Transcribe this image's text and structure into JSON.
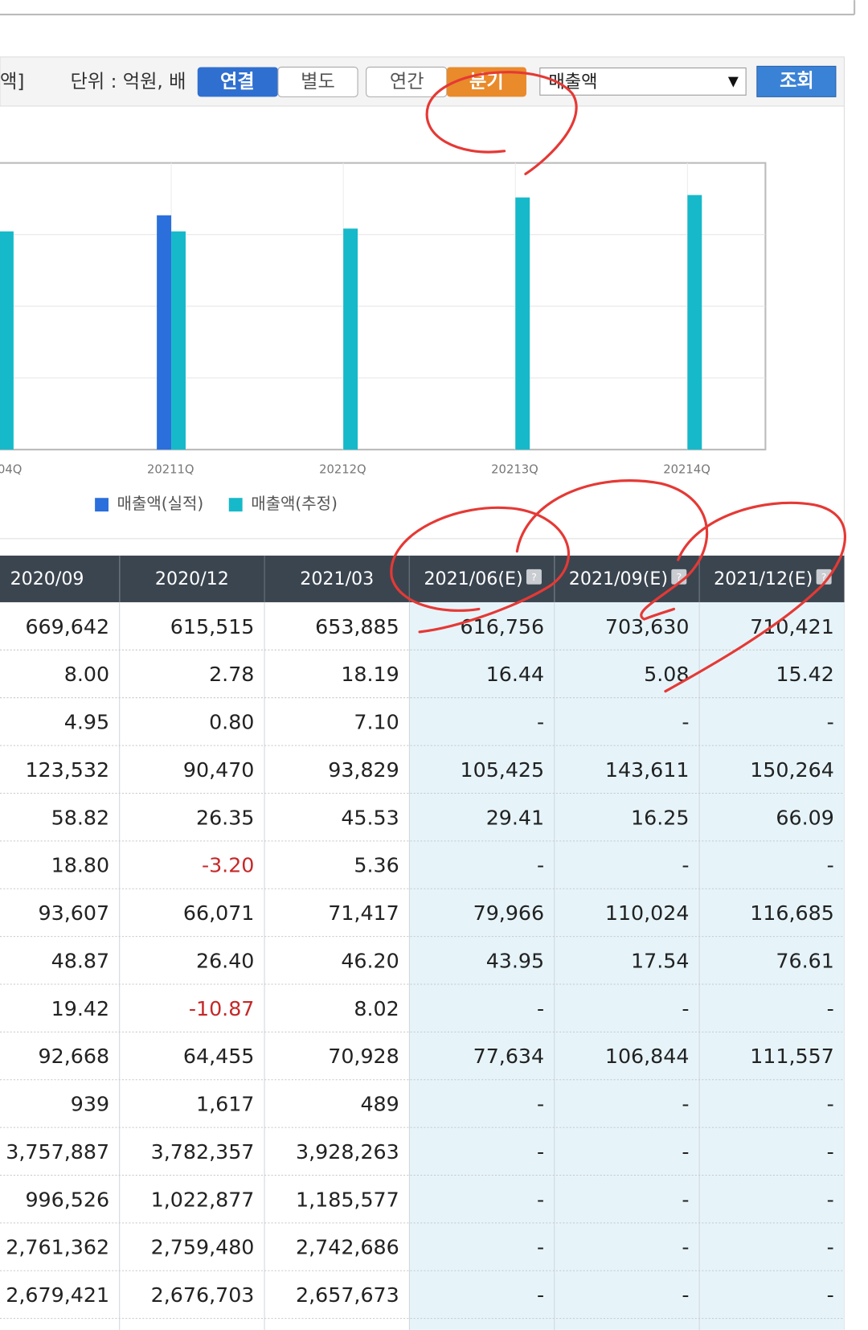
{
  "toolbar": {
    "cut_label": "액]",
    "unit": "단위 : 억원, 배",
    "buttons": [
      "연결",
      "별도",
      "연간",
      "분기"
    ],
    "select": "매출액",
    "submit": "조회"
  },
  "chart_data": {
    "type": "bar",
    "categories": [
      "04Q",
      "20211Q",
      "20212Q",
      "20213Q",
      "20214Q"
    ],
    "series": [
      {
        "name": "매출액(실적)",
        "color": "#2a6fdb",
        "values": [
          null,
          653885,
          null,
          null,
          null
        ]
      },
      {
        "name": "매출액(추정)",
        "color": "#16b9c9",
        "values": [
          609000,
          609000,
          616756,
          703630,
          710421
        ]
      }
    ],
    "ylim": [
      0,
      800000
    ],
    "yticks": [
      200000,
      400000,
      600000
    ],
    "grid": true
  },
  "table": {
    "headers": [
      "2020/09",
      "2020/12",
      "2021/03",
      "2021/06(E)",
      "2021/09(E)",
      "2021/12(E)"
    ],
    "rows": [
      [
        "669,642",
        "615,515",
        "653,885",
        "616,756",
        "703,630",
        "710,421"
      ],
      [
        "8.00",
        "2.78",
        "18.19",
        "16.44",
        "5.08",
        "15.42"
      ],
      [
        "4.95",
        "0.80",
        "7.10",
        "-",
        "-",
        "-"
      ],
      [
        "123,532",
        "90,470",
        "93,829",
        "105,425",
        "143,611",
        "150,264"
      ],
      [
        "58.82",
        "26.35",
        "45.53",
        "29.41",
        "16.25",
        "66.09"
      ],
      [
        "18.80",
        "-3.20",
        "5.36",
        "-",
        "-",
        "-"
      ],
      [
        "93,607",
        "66,071",
        "71,417",
        "79,966",
        "110,024",
        "116,685"
      ],
      [
        "48.87",
        "26.40",
        "46.20",
        "43.95",
        "17.54",
        "76.61"
      ],
      [
        "19.42",
        "-10.87",
        "8.02",
        "-",
        "-",
        "-"
      ],
      [
        "92,668",
        "64,455",
        "70,928",
        "77,634",
        "106,844",
        "111,557"
      ],
      [
        "939",
        "1,617",
        "489",
        "-",
        "-",
        "-"
      ],
      [
        "3,757,887",
        "3,782,357",
        "3,928,263",
        "-",
        "-",
        "-"
      ],
      [
        "996,526",
        "1,022,877",
        "1,185,577",
        "-",
        "-",
        "-"
      ],
      [
        "2,761,362",
        "2,759,480",
        "2,742,686",
        "-",
        "-",
        "-"
      ],
      [
        "2,679,421",
        "2,676,703",
        "2,657,673",
        "-",
        "-",
        "-"
      ]
    ]
  }
}
